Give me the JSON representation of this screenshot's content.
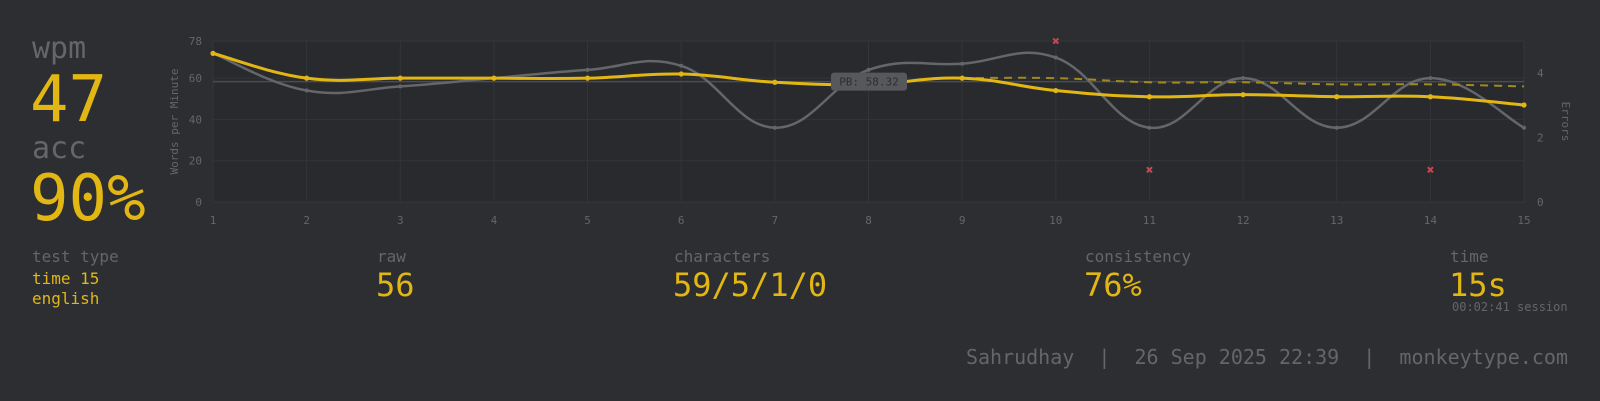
{
  "colors": {
    "background": "#2c2e31",
    "main": "#e2b714",
    "sub": "#646669",
    "raw_line": "#646669",
    "error": "#ca4754"
  },
  "stats": {
    "wpm_label": "wpm",
    "wpm_value": "47",
    "acc_label": "acc",
    "acc_value": "90%",
    "test_type_label": "test type",
    "test_type_line1": "time 15",
    "test_type_line2": "english",
    "raw_label": "raw",
    "raw_value": "56",
    "characters_label": "characters",
    "characters_value": "59/5/1/0",
    "consistency_label": "consistency",
    "consistency_value": "76%",
    "time_label": "time",
    "time_value": "15s",
    "session_text": "00:02:41 session"
  },
  "footer": {
    "text": "Sahrudhay  |  26 Sep 2025 22:39  |  monkeytype.com"
  },
  "chart_data": {
    "type": "line",
    "x": [
      1,
      2,
      3,
      4,
      5,
      6,
      7,
      8,
      9,
      10,
      11,
      12,
      13,
      14,
      15
    ],
    "ylabel": "Words per Minute",
    "y2label": "Errors",
    "ylim": [
      0,
      78
    ],
    "y2lim": [
      0,
      5
    ],
    "yticks": [
      0,
      20,
      40,
      60,
      78
    ],
    "y2ticks": [
      0,
      2,
      4
    ],
    "grid": true,
    "pb_annotation": {
      "label": "PB: 58.32",
      "value": 58.32
    },
    "series": [
      {
        "key": "wpm",
        "values": [
          72,
          60,
          60,
          60,
          60,
          62,
          58,
          57,
          60,
          54,
          51,
          52,
          51,
          51,
          47
        ]
      },
      {
        "key": "raw",
        "values": [
          72,
          54,
          56,
          60,
          64,
          66,
          36,
          64,
          67,
          70,
          36,
          60,
          36,
          60,
          36
        ]
      },
      {
        "key": "burst_avg",
        "values": [
          null,
          null,
          null,
          null,
          null,
          null,
          null,
          null,
          60,
          60,
          58,
          58,
          57,
          57,
          56
        ]
      }
    ],
    "errors": [
      {
        "x": 10,
        "y": 5
      },
      {
        "x": 11,
        "y": 1
      },
      {
        "x": 14,
        "y": 1
      }
    ]
  }
}
